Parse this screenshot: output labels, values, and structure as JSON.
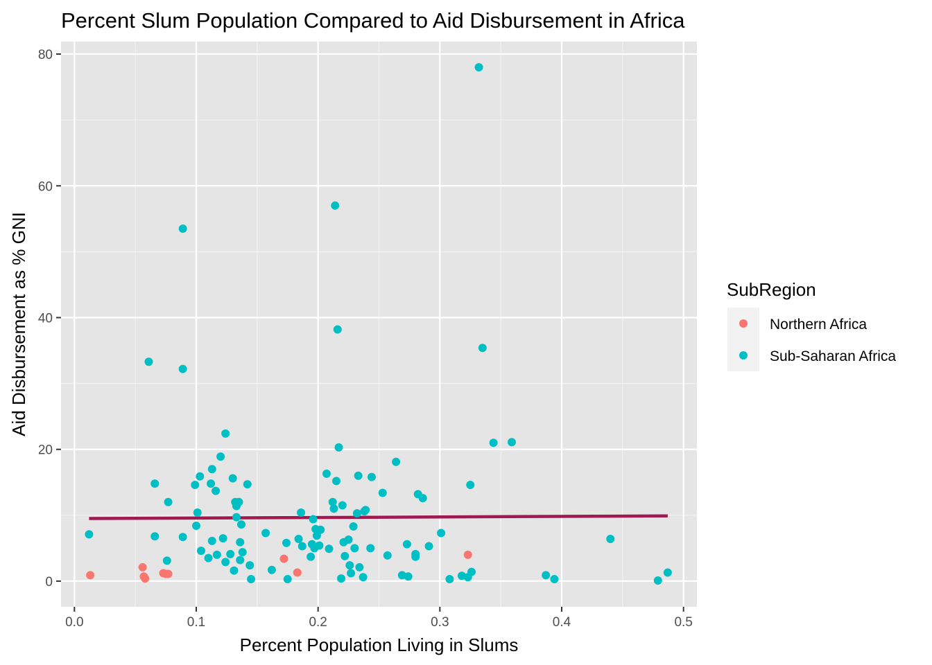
{
  "chart_data": {
    "type": "scatter",
    "title": "Percent Slum Population Compared to Aid Disbursement in Africa",
    "xlabel": "Percent Population Living in Slums",
    "ylabel": "Aid Disbursement as % GNI",
    "xlim": [
      -0.011,
      0.511
    ],
    "ylim": [
      -3.9,
      81.9
    ],
    "x_ticks": [
      0.0,
      0.1,
      0.2,
      0.3,
      0.4,
      0.5
    ],
    "x_tick_labels": [
      "0.0",
      "0.1",
      "0.2",
      "0.3",
      "0.4",
      "0.5"
    ],
    "y_ticks": [
      0,
      20,
      40,
      60,
      80
    ],
    "y_tick_labels": [
      "0",
      "20",
      "40",
      "60",
      "80"
    ],
    "grid": true,
    "legend_position": "right",
    "legend_title": "SubRegion",
    "background": "#e5e5e5",
    "trend_line": {
      "color": "#9e1a50",
      "x": [
        0.012,
        0.487
      ],
      "y": [
        9.5,
        9.9
      ]
    },
    "series": [
      {
        "name": "Northern Africa",
        "color": "#f8766d",
        "points": [
          [
            0.013,
            0.9
          ],
          [
            0.056,
            2.1
          ],
          [
            0.057,
            0.7
          ],
          [
            0.058,
            0.4
          ],
          [
            0.073,
            1.2
          ],
          [
            0.075,
            1.1
          ],
          [
            0.077,
            1.1
          ],
          [
            0.172,
            3.4
          ],
          [
            0.183,
            1.3
          ],
          [
            0.323,
            4.0
          ]
        ]
      },
      {
        "name": "Sub-Saharan Africa",
        "color": "#00bfc4",
        "points": [
          [
            0.012,
            7.1
          ],
          [
            0.061,
            33.3
          ],
          [
            0.066,
            14.8
          ],
          [
            0.066,
            6.8
          ],
          [
            0.076,
            3.1
          ],
          [
            0.077,
            12.0
          ],
          [
            0.089,
            53.5
          ],
          [
            0.089,
            32.2
          ],
          [
            0.089,
            6.7
          ],
          [
            0.099,
            14.6
          ],
          [
            0.1,
            8.4
          ],
          [
            0.101,
            10.4
          ],
          [
            0.103,
            15.9
          ],
          [
            0.104,
            4.6
          ],
          [
            0.11,
            3.5
          ],
          [
            0.112,
            14.8
          ],
          [
            0.113,
            17.0
          ],
          [
            0.113,
            6.1
          ],
          [
            0.116,
            13.7
          ],
          [
            0.117,
            4.0
          ],
          [
            0.12,
            18.9
          ],
          [
            0.122,
            6.5
          ],
          [
            0.124,
            22.4
          ],
          [
            0.124,
            2.9
          ],
          [
            0.128,
            4.1
          ],
          [
            0.13,
            15.6
          ],
          [
            0.131,
            1.6
          ],
          [
            0.132,
            12.0
          ],
          [
            0.133,
            9.7
          ],
          [
            0.133,
            11.4
          ],
          [
            0.135,
            12.0
          ],
          [
            0.136,
            5.9
          ],
          [
            0.136,
            3.2
          ],
          [
            0.137,
            8.6
          ],
          [
            0.138,
            4.4
          ],
          [
            0.142,
            14.7
          ],
          [
            0.144,
            2.4
          ],
          [
            0.145,
            0.3
          ],
          [
            0.157,
            7.3
          ],
          [
            0.162,
            1.7
          ],
          [
            0.174,
            5.8
          ],
          [
            0.175,
            0.3
          ],
          [
            0.184,
            6.4
          ],
          [
            0.186,
            10.4
          ],
          [
            0.187,
            5.3
          ],
          [
            0.194,
            3.7
          ],
          [
            0.195,
            5.6
          ],
          [
            0.196,
            9.4
          ],
          [
            0.197,
            5.0
          ],
          [
            0.198,
            7.9
          ],
          [
            0.199,
            6.9
          ],
          [
            0.201,
            5.4
          ],
          [
            0.202,
            7.8
          ],
          [
            0.207,
            16.3
          ],
          [
            0.209,
            4.9
          ],
          [
            0.212,
            12.0
          ],
          [
            0.213,
            11.0
          ],
          [
            0.214,
            57.0
          ],
          [
            0.215,
            15.2
          ],
          [
            0.216,
            38.2
          ],
          [
            0.217,
            20.3
          ],
          [
            0.219,
            0.4
          ],
          [
            0.22,
            11.5
          ],
          [
            0.221,
            5.9
          ],
          [
            0.222,
            3.8
          ],
          [
            0.225,
            6.3
          ],
          [
            0.226,
            2.4
          ],
          [
            0.227,
            1.2
          ],
          [
            0.229,
            8.3
          ],
          [
            0.23,
            5.0
          ],
          [
            0.232,
            10.3
          ],
          [
            0.233,
            16.0
          ],
          [
            0.234,
            2.1
          ],
          [
            0.237,
            0.6
          ],
          [
            0.238,
            10.6
          ],
          [
            0.239,
            10.8
          ],
          [
            0.243,
            5.0
          ],
          [
            0.244,
            15.8
          ],
          [
            0.253,
            13.4
          ],
          [
            0.257,
            3.9
          ],
          [
            0.264,
            18.1
          ],
          [
            0.269,
            0.9
          ],
          [
            0.273,
            5.6
          ],
          [
            0.274,
            0.7
          ],
          [
            0.28,
            4.1
          ],
          [
            0.28,
            3.7
          ],
          [
            0.282,
            13.2
          ],
          [
            0.286,
            12.6
          ],
          [
            0.291,
            5.3
          ],
          [
            0.301,
            7.3
          ],
          [
            0.308,
            0.3
          ],
          [
            0.318,
            0.8
          ],
          [
            0.323,
            0.6
          ],
          [
            0.325,
            14.6
          ],
          [
            0.326,
            1.4
          ],
          [
            0.332,
            78.0
          ],
          [
            0.335,
            35.4
          ],
          [
            0.344,
            21.0
          ],
          [
            0.359,
            21.1
          ],
          [
            0.387,
            0.9
          ],
          [
            0.394,
            0.3
          ],
          [
            0.44,
            6.4
          ],
          [
            0.479,
            0.1
          ],
          [
            0.487,
            1.3
          ]
        ]
      }
    ]
  }
}
